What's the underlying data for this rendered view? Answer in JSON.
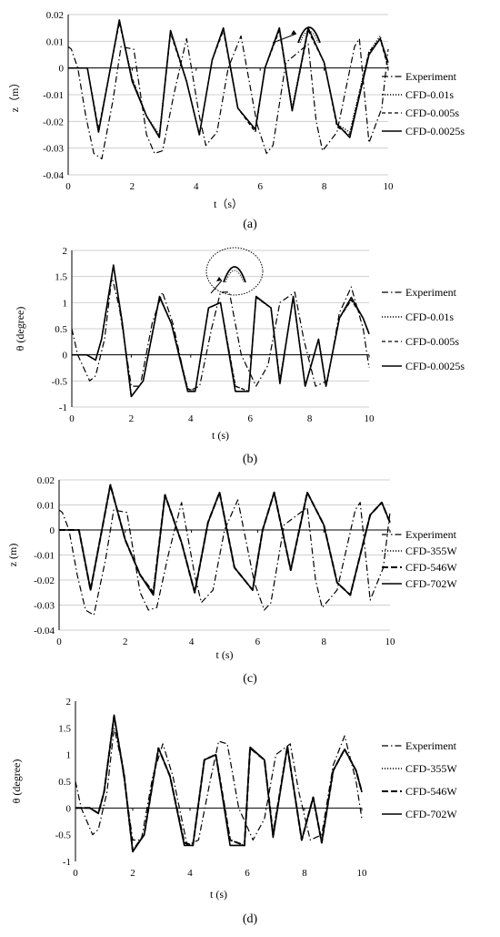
{
  "chart_data": [
    {
      "panel": "(a)",
      "type": "line",
      "xlabel": "t（s）",
      "ylabel": "z（m）",
      "xlim": [
        0,
        10
      ],
      "ylim": [
        -0.04,
        0.02
      ],
      "xticks": [
        "0",
        "2",
        "4",
        "6",
        "8",
        "10"
      ],
      "yticks": [
        "0.02",
        "0.01",
        "0",
        "-0.01",
        "-0.02",
        "-0.03",
        "-0.04"
      ],
      "grid": "horizontal",
      "legend": "right",
      "series": [
        {
          "name": "Experiment",
          "style": "dashdot",
          "x": [
            0,
            0.1,
            0.3,
            0.55,
            0.8,
            1.05,
            1.4,
            1.65,
            2.05,
            2.45,
            2.7,
            2.95,
            3.3,
            3.7,
            4.1,
            4.3,
            4.65,
            5.0,
            5.4,
            5.9,
            6.2,
            6.4,
            6.8,
            7.5,
            7.75,
            7.95,
            8.4,
            8.95,
            9.1,
            9.4,
            9.8,
            10
          ],
          "y": [
            0.008,
            0.007,
            0.0,
            -0.018,
            -0.032,
            -0.034,
            -0.012,
            0.008,
            0.007,
            -0.025,
            -0.032,
            -0.031,
            -0.01,
            0.011,
            -0.018,
            -0.029,
            -0.024,
            0.0,
            0.012,
            -0.021,
            -0.032,
            -0.029,
            0.002,
            0.009,
            -0.02,
            -0.031,
            -0.024,
            0.008,
            0.011,
            -0.028,
            -0.015,
            0.007
          ]
        },
        {
          "name": "CFD-0.01s",
          "style": "dotted",
          "x": [
            0,
            0.4,
            0.6,
            0.95,
            1.6,
            2.0,
            2.45,
            2.85,
            3.2,
            3.7,
            4.1,
            4.5,
            4.85,
            5.3,
            5.85,
            6.15,
            6.6,
            7.0,
            7.5,
            8.0,
            8.4,
            8.8,
            9.4,
            9.75,
            10
          ],
          "y": [
            0,
            0,
            0,
            -0.024,
            0.018,
            -0.004,
            -0.018,
            -0.025,
            0.014,
            -0.005,
            -0.025,
            0.003,
            0.015,
            -0.015,
            -0.023,
            0.0,
            0.015,
            -0.015,
            0.015,
            0.002,
            -0.021,
            -0.024,
            0.006,
            0.012,
            0.0
          ]
        },
        {
          "name": "CFD-0.005s",
          "style": "dashed",
          "x": [
            0,
            0.4,
            0.6,
            0.95,
            1.6,
            2.0,
            2.45,
            2.85,
            3.2,
            3.7,
            4.1,
            4.5,
            4.85,
            5.3,
            5.85,
            6.15,
            6.6,
            7.0,
            7.5,
            8.0,
            8.4,
            8.8,
            9.4,
            9.75,
            10
          ],
          "y": [
            0,
            0,
            0,
            -0.023,
            0.017,
            -0.004,
            -0.018,
            -0.026,
            0.013,
            -0.005,
            -0.025,
            0.003,
            0.014,
            -0.015,
            -0.024,
            0.0,
            0.014,
            -0.016,
            0.014,
            0.002,
            -0.022,
            -0.025,
            0.006,
            0.011,
            0.0
          ]
        },
        {
          "name": "CFD-0.0025s",
          "style": "solid",
          "x": [
            0,
            0.4,
            0.6,
            0.95,
            1.6,
            2.0,
            2.45,
            2.85,
            3.2,
            3.7,
            4.1,
            4.5,
            4.85,
            5.3,
            5.85,
            6.15,
            6.6,
            7.0,
            7.5,
            8.0,
            8.4,
            8.8,
            9.4,
            9.75,
            10
          ],
          "y": [
            0,
            0,
            0,
            -0.024,
            0.018,
            -0.005,
            -0.018,
            -0.026,
            0.014,
            -0.005,
            -0.025,
            0.003,
            0.015,
            -0.015,
            -0.023,
            0.0,
            0.015,
            -0.016,
            0.015,
            0.002,
            -0.021,
            -0.026,
            0.005,
            0.011,
            0.002
          ]
        }
      ]
    },
    {
      "panel": "(b)",
      "type": "line",
      "xlabel": "t (s)",
      "ylabel": "θ (degree)",
      "xlim": [
        0,
        10
      ],
      "ylim": [
        -1,
        2
      ],
      "xticks": [
        "0",
        "2",
        "4",
        "6",
        "8",
        "10"
      ],
      "yticks": [
        "2",
        "1.5",
        "1",
        "0.5",
        "0",
        "-0.5",
        "-1"
      ],
      "grid": "horizontal",
      "legend": "right",
      "series": [
        {
          "name": "Experiment",
          "style": "dashdot",
          "x": [
            0,
            0.2,
            0.6,
            0.8,
            1.1,
            1.35,
            1.6,
            2.0,
            2.3,
            2.7,
            3.05,
            3.4,
            3.9,
            4.3,
            4.7,
            5.0,
            5.3,
            5.7,
            6.2,
            6.6,
            7.0,
            7.5,
            7.8,
            8.2,
            8.6,
            9.0,
            9.4,
            9.8,
            10
          ],
          "y": [
            0.5,
            0.0,
            -0.5,
            -0.4,
            0.3,
            1.5,
            0.9,
            -0.6,
            -0.6,
            0.6,
            1.2,
            0.6,
            -0.7,
            -0.6,
            0.5,
            1.2,
            1.2,
            0.0,
            -0.6,
            -0.2,
            1.0,
            1.2,
            0.3,
            -0.6,
            -0.5,
            0.8,
            1.3,
            0.5,
            -0.25
          ]
        },
        {
          "name": "CFD-0.01s",
          "style": "dotted",
          "x": [
            0,
            0.5,
            0.8,
            1.0,
            1.4,
            1.7,
            2.0,
            2.4,
            2.95,
            3.35,
            3.9,
            4.15,
            4.6,
            5.0,
            5.5,
            5.95,
            6.2,
            6.7,
            7.0,
            7.45,
            7.85,
            8.3,
            8.55,
            9.0,
            9.4,
            9.8,
            10
          ],
          "y": [
            0,
            0,
            -0.1,
            0.3,
            1.7,
            0.6,
            -0.8,
            -0.5,
            1.1,
            0.6,
            -0.65,
            -0.7,
            0.9,
            1.0,
            -0.6,
            -0.7,
            1.1,
            0.9,
            -0.5,
            1.1,
            -0.6,
            0.3,
            -0.6,
            0.7,
            1.05,
            0.7,
            0.4
          ]
        },
        {
          "name": "CFD-0.005s",
          "style": "dashed",
          "x": [
            0,
            0.5,
            0.8,
            1.0,
            1.4,
            1.7,
            2.0,
            2.4,
            2.95,
            3.35,
            3.9,
            4.15,
            4.6,
            5.0,
            5.5,
            5.95,
            6.2,
            6.7,
            7.0,
            7.45,
            7.85,
            8.3,
            8.55,
            9.0,
            9.4,
            9.8,
            10
          ],
          "y": [
            0,
            0,
            -0.1,
            0.3,
            1.7,
            0.6,
            -0.8,
            -0.5,
            1.1,
            0.6,
            -0.65,
            -0.7,
            0.9,
            1.0,
            -0.6,
            -0.7,
            1.1,
            0.9,
            -0.5,
            1.1,
            -0.6,
            0.3,
            -0.6,
            0.7,
            1.05,
            0.7,
            0.4
          ]
        },
        {
          "name": "CFD-0.0025s",
          "style": "solid",
          "x": [
            0,
            0.5,
            0.8,
            1.0,
            1.4,
            1.7,
            2.0,
            2.4,
            2.95,
            3.35,
            3.9,
            4.15,
            4.6,
            5.0,
            5.5,
            5.95,
            6.2,
            6.7,
            7.0,
            7.45,
            7.85,
            8.3,
            8.55,
            9.0,
            9.4,
            9.8,
            10
          ],
          "y": [
            0,
            0,
            -0.1,
            0.3,
            1.72,
            0.6,
            -0.8,
            -0.5,
            1.12,
            0.6,
            -0.7,
            -0.7,
            0.9,
            1.0,
            -0.7,
            -0.7,
            1.12,
            0.9,
            -0.55,
            1.12,
            -0.6,
            0.3,
            -0.6,
            0.7,
            1.1,
            0.7,
            0.4
          ]
        }
      ]
    },
    {
      "panel": "(c)",
      "type": "line",
      "xlabel": "t (s)",
      "ylabel": "z (m)",
      "xlim": [
        0,
        10
      ],
      "ylim": [
        -0.04,
        0.02
      ],
      "xticks": [
        "0",
        "2",
        "4",
        "6",
        "8",
        "10"
      ],
      "yticks": [
        "0.02",
        "0.01",
        "0",
        "-0.01",
        "-0.02",
        "-0.03",
        "-0.04"
      ],
      "grid": "horizontal",
      "legend": "right",
      "series": [
        {
          "name": "Experiment",
          "style": "dashdot",
          "x": [
            0,
            0.1,
            0.3,
            0.55,
            0.8,
            1.05,
            1.4,
            1.65,
            2.05,
            2.45,
            2.7,
            2.95,
            3.3,
            3.7,
            4.1,
            4.3,
            4.65,
            5.0,
            5.4,
            5.9,
            6.2,
            6.4,
            6.8,
            7.5,
            7.75,
            7.95,
            8.4,
            8.95,
            9.1,
            9.4,
            9.8,
            10
          ],
          "y": [
            0.008,
            0.007,
            0.0,
            -0.018,
            -0.032,
            -0.034,
            -0.012,
            0.008,
            0.007,
            -0.025,
            -0.032,
            -0.031,
            -0.01,
            0.011,
            -0.018,
            -0.029,
            -0.024,
            0.0,
            0.012,
            -0.021,
            -0.032,
            -0.029,
            0.002,
            0.009,
            -0.02,
            -0.031,
            -0.024,
            0.008,
            0.011,
            -0.028,
            -0.015,
            0.007
          ]
        },
        {
          "name": "CFD-355W",
          "style": "dotted",
          "x": [
            0,
            0.4,
            0.6,
            0.95,
            1.55,
            2.0,
            2.45,
            2.85,
            3.2,
            3.7,
            4.1,
            4.5,
            4.85,
            5.3,
            5.85,
            6.15,
            6.5,
            7.0,
            7.5,
            8.0,
            8.4,
            8.8,
            9.4,
            9.75,
            10
          ],
          "y": [
            0,
            0,
            0,
            -0.024,
            0.018,
            -0.004,
            -0.018,
            -0.025,
            0.014,
            -0.005,
            -0.025,
            0.003,
            0.015,
            -0.015,
            -0.024,
            0.0,
            0.015,
            -0.016,
            0.015,
            0.002,
            -0.021,
            -0.026,
            0.006,
            0.011,
            0.003
          ]
        },
        {
          "name": "CFD-546W",
          "style": "longdash",
          "x": [
            0,
            0.4,
            0.6,
            0.95,
            1.55,
            2.0,
            2.45,
            2.85,
            3.2,
            3.7,
            4.1,
            4.5,
            4.85,
            5.3,
            5.85,
            6.15,
            6.5,
            7.0,
            7.5,
            8.0,
            8.4,
            8.8,
            9.4,
            9.75,
            10
          ],
          "y": [
            0,
            0,
            0,
            -0.024,
            0.018,
            -0.004,
            -0.018,
            -0.025,
            0.014,
            -0.005,
            -0.025,
            0.003,
            0.015,
            -0.015,
            -0.024,
            0.0,
            0.015,
            -0.016,
            0.015,
            0.002,
            -0.021,
            -0.026,
            0.006,
            0.011,
            0.003
          ]
        },
        {
          "name": "CFD-702W",
          "style": "solid",
          "x": [
            0,
            0.4,
            0.6,
            0.95,
            1.55,
            2.0,
            2.45,
            2.85,
            3.2,
            3.7,
            4.1,
            4.5,
            4.85,
            5.3,
            5.85,
            6.15,
            6.5,
            7.0,
            7.5,
            8.0,
            8.4,
            8.8,
            9.4,
            9.75,
            10
          ],
          "y": [
            0,
            0,
            0,
            -0.024,
            0.018,
            -0.004,
            -0.018,
            -0.026,
            0.014,
            -0.005,
            -0.025,
            0.003,
            0.015,
            -0.015,
            -0.024,
            0.0,
            0.015,
            -0.016,
            0.015,
            0.002,
            -0.021,
            -0.026,
            0.006,
            0.011,
            0.003
          ]
        }
      ]
    },
    {
      "panel": "(d)",
      "type": "line",
      "xlabel": "t (s)",
      "ylabel": "θ (degree)",
      "xlim": [
        0,
        10
      ],
      "ylim": [
        -1,
        2
      ],
      "xticks": [
        "0",
        "2",
        "4",
        "6",
        "8",
        "10"
      ],
      "yticks": [
        "2",
        "1.5",
        "1",
        "0.5",
        "0",
        "-0.5",
        "-1"
      ],
      "grid": "none",
      "legend": "right",
      "series": [
        {
          "name": "Experiment",
          "style": "dashdot",
          "x": [
            0,
            0.2,
            0.6,
            0.8,
            1.1,
            1.35,
            1.6,
            2.0,
            2.3,
            2.7,
            3.05,
            3.4,
            3.9,
            4.3,
            4.7,
            5.0,
            5.3,
            5.7,
            6.2,
            6.6,
            7.0,
            7.5,
            7.8,
            8.2,
            8.6,
            9.0,
            9.4,
            9.8,
            10
          ],
          "y": [
            0.5,
            0.0,
            -0.5,
            -0.4,
            0.3,
            1.5,
            0.9,
            -0.6,
            -0.6,
            0.6,
            1.2,
            0.6,
            -0.7,
            -0.6,
            0.5,
            1.25,
            1.2,
            0.0,
            -0.6,
            -0.2,
            1.0,
            1.2,
            0.3,
            -0.6,
            -0.5,
            0.8,
            1.35,
            0.5,
            -0.2
          ]
        },
        {
          "name": "CFD-355W",
          "style": "dotted",
          "x": [
            0,
            0.5,
            0.8,
            1.0,
            1.35,
            1.7,
            2.0,
            2.4,
            2.9,
            3.3,
            3.8,
            4.1,
            4.5,
            4.9,
            5.4,
            5.9,
            6.1,
            6.6,
            6.9,
            7.4,
            7.9,
            8.3,
            8.6,
            9.0,
            9.4,
            9.8,
            10
          ],
          "y": [
            0,
            0,
            -0.1,
            0.3,
            1.72,
            0.6,
            -0.8,
            -0.5,
            1.12,
            0.6,
            -0.65,
            -0.7,
            0.9,
            1.0,
            -0.6,
            -0.7,
            1.12,
            0.9,
            -0.5,
            1.15,
            -0.6,
            0.2,
            -0.65,
            0.7,
            1.1,
            0.7,
            0.3
          ]
        },
        {
          "name": "CFD-546W",
          "style": "longdash",
          "x": [
            0,
            0.5,
            0.8,
            1.0,
            1.35,
            1.7,
            2.0,
            2.4,
            2.9,
            3.3,
            3.8,
            4.1,
            4.5,
            4.9,
            5.4,
            5.9,
            6.1,
            6.6,
            6.9,
            7.4,
            7.9,
            8.3,
            8.6,
            9.0,
            9.4,
            9.8,
            10
          ],
          "y": [
            0,
            0,
            -0.1,
            0.3,
            1.72,
            0.6,
            -0.8,
            -0.5,
            1.12,
            0.6,
            -0.65,
            -0.7,
            0.9,
            1.0,
            -0.6,
            -0.7,
            1.12,
            0.9,
            -0.5,
            1.15,
            -0.6,
            0.2,
            -0.65,
            0.7,
            1.1,
            0.7,
            0.3
          ]
        },
        {
          "name": "CFD-702W",
          "style": "solid",
          "x": [
            0,
            0.5,
            0.8,
            1.0,
            1.35,
            1.7,
            2.0,
            2.4,
            2.9,
            3.3,
            3.8,
            4.1,
            4.5,
            4.9,
            5.4,
            5.9,
            6.1,
            6.6,
            6.9,
            7.4,
            7.9,
            8.3,
            8.6,
            9.0,
            9.4,
            9.8,
            10
          ],
          "y": [
            0,
            0,
            -0.1,
            0.3,
            1.74,
            0.6,
            -0.82,
            -0.5,
            1.12,
            0.6,
            -0.7,
            -0.7,
            0.9,
            1.0,
            -0.7,
            -0.7,
            1.14,
            0.9,
            -0.55,
            1.15,
            -0.6,
            0.2,
            -0.65,
            0.7,
            1.1,
            0.7,
            0.3
          ]
        }
      ]
    }
  ]
}
